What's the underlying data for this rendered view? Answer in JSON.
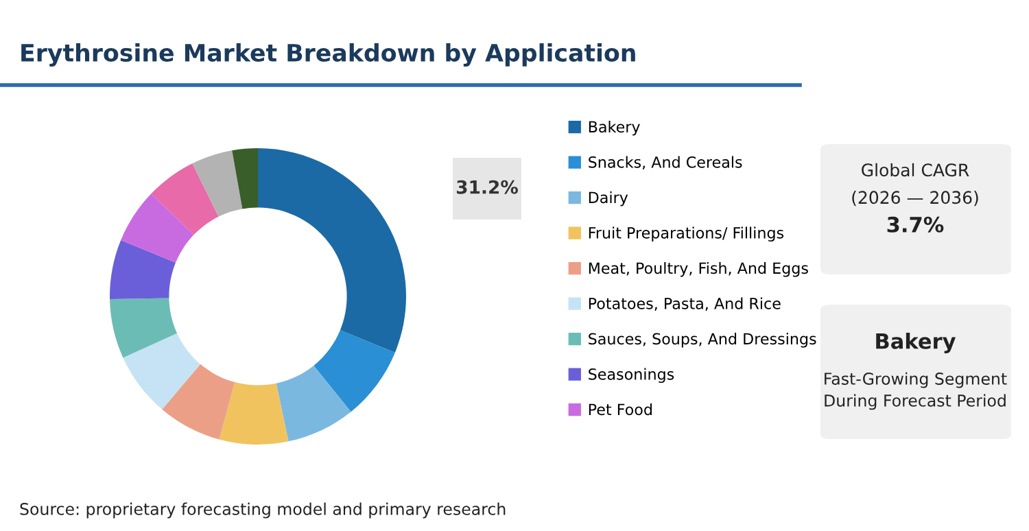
{
  "chart_data": {
    "type": "donut",
    "title": "Erythrosine Market Breakdown by Application",
    "categories": [
      "Bakery",
      "Snacks, And Cereals",
      "Dairy",
      "Fruit Preparations/ Fillings",
      "Meat, Poultry, Fish, And Eggs",
      "Potatoes, Pasta, And Rice",
      "Sauces, Soups, And Dressings",
      "Seasonings",
      "Pet Food",
      null,
      null,
      null
    ],
    "values": [
      31.2,
      8,
      7.5,
      7.5,
      7,
      7,
      6.5,
      6.5,
      6,
      5.5,
      4.5,
      2.8
    ],
    "colors": [
      "#1b6aa5",
      "#2a8fd4",
      "#7ab8e0",
      "#f0c35e",
      "#ec9f87",
      "#c5e3f5",
      "#6cbcb6",
      "#6a5fd8",
      "#c96be0",
      "#e86aa8",
      "#b3b3b3",
      "#3a5e2a"
    ],
    "value_labels": [
      "31.2%",
      null,
      null,
      null,
      null,
      null,
      null,
      null,
      null,
      null,
      null,
      null
    ],
    "legend": "right",
    "annotations": [
      "Global CAGR",
      "(2026 — 2036)",
      "3.7%",
      "Bakery",
      "Fast-Growing Segment\nDuring Forecast Period",
      "Source: proprietary forecasting model and primary research"
    ]
  }
}
